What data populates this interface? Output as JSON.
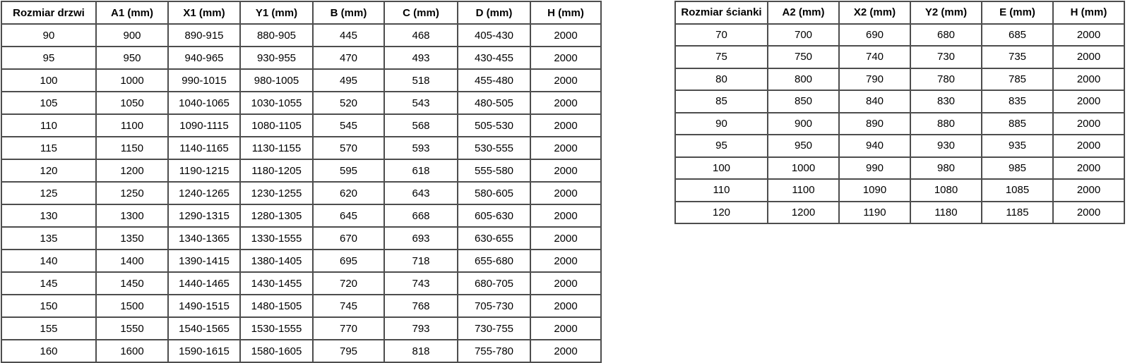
{
  "colors": {
    "border": "#4d4d4d",
    "outer_border": "#3f3f3f",
    "background": "#ffffff",
    "text": "#000000"
  },
  "tables": {
    "door": {
      "title": "Rozmiar drzwi",
      "headers": [
        "Rozmiar drzwi",
        "A1 (mm)",
        "X1 (mm)",
        "Y1 (mm)",
        "B (mm)",
        "C (mm)",
        "D (mm)",
        "H (mm)"
      ],
      "rows": [
        [
          "90",
          "900",
          "890-915",
          "880-905",
          "445",
          "468",
          "405-430",
          "2000"
        ],
        [
          "95",
          "950",
          "940-965",
          "930-955",
          "470",
          "493",
          "430-455",
          "2000"
        ],
        [
          "100",
          "1000",
          "990-1015",
          "980-1005",
          "495",
          "518",
          "455-480",
          "2000"
        ],
        [
          "105",
          "1050",
          "1040-1065",
          "1030-1055",
          "520",
          "543",
          "480-505",
          "2000"
        ],
        [
          "110",
          "1100",
          "1090-1115",
          "1080-1105",
          "545",
          "568",
          "505-530",
          "2000"
        ],
        [
          "115",
          "1150",
          "1140-1165",
          "1130-1155",
          "570",
          "593",
          "530-555",
          "2000"
        ],
        [
          "120",
          "1200",
          "1190-1215",
          "1180-1205",
          "595",
          "618",
          "555-580",
          "2000"
        ],
        [
          "125",
          "1250",
          "1240-1265",
          "1230-1255",
          "620",
          "643",
          "580-605",
          "2000"
        ],
        [
          "130",
          "1300",
          "1290-1315",
          "1280-1305",
          "645",
          "668",
          "605-630",
          "2000"
        ],
        [
          "135",
          "1350",
          "1340-1365",
          "1330-1555",
          "670",
          "693",
          "630-655",
          "2000"
        ],
        [
          "140",
          "1400",
          "1390-1415",
          "1380-1405",
          "695",
          "718",
          "655-680",
          "2000"
        ],
        [
          "145",
          "1450",
          "1440-1465",
          "1430-1455",
          "720",
          "743",
          "680-705",
          "2000"
        ],
        [
          "150",
          "1500",
          "1490-1515",
          "1480-1505",
          "745",
          "768",
          "705-730",
          "2000"
        ],
        [
          "155",
          "1550",
          "1540-1565",
          "1530-1555",
          "770",
          "793",
          "730-755",
          "2000"
        ],
        [
          "160",
          "1600",
          "1590-1615",
          "1580-1605",
          "795",
          "818",
          "755-780",
          "2000"
        ]
      ]
    },
    "wall": {
      "title": "Rozmiar ścianki",
      "headers": [
        "Rozmiar ścianki",
        "A2 (mm)",
        "X2 (mm)",
        "Y2 (mm)",
        "E (mm)",
        "H (mm)"
      ],
      "rows": [
        [
          "70",
          "700",
          "690",
          "680",
          "685",
          "2000"
        ],
        [
          "75",
          "750",
          "740",
          "730",
          "735",
          "2000"
        ],
        [
          "80",
          "800",
          "790",
          "780",
          "785",
          "2000"
        ],
        [
          "85",
          "850",
          "840",
          "830",
          "835",
          "2000"
        ],
        [
          "90",
          "900",
          "890",
          "880",
          "885",
          "2000"
        ],
        [
          "95",
          "950",
          "940",
          "930",
          "935",
          "2000"
        ],
        [
          "100",
          "1000",
          "990",
          "980",
          "985",
          "2000"
        ],
        [
          "110",
          "1100",
          "1090",
          "1080",
          "1085",
          "2000"
        ],
        [
          "120",
          "1200",
          "1190",
          "1180",
          "1185",
          "2000"
        ]
      ]
    }
  }
}
